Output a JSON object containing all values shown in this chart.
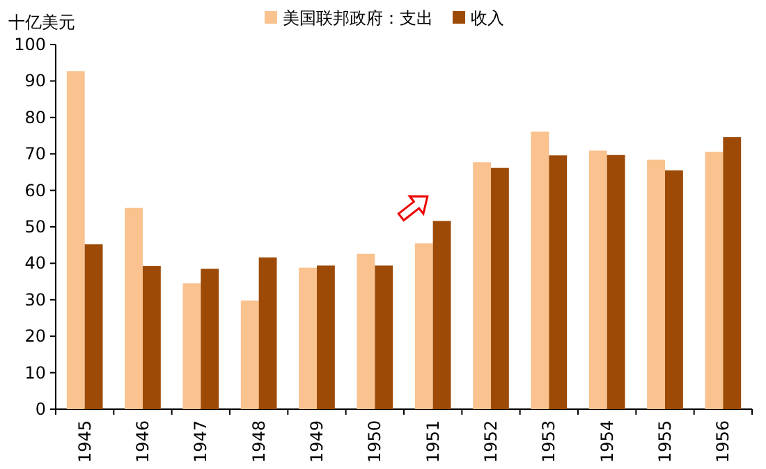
{
  "chart_data": {
    "type": "bar",
    "ylabel": "十亿美元",
    "categories": [
      "1945",
      "1946",
      "1947",
      "1948",
      "1949",
      "1950",
      "1951",
      "1952",
      "1953",
      "1954",
      "1955",
      "1956"
    ],
    "series": [
      {
        "name": "美国联邦政府：支出",
        "color": "#f9c28f",
        "values": [
          92.7,
          55.2,
          34.5,
          29.8,
          38.8,
          42.6,
          45.5,
          67.7,
          76.1,
          70.9,
          68.4,
          70.6
        ]
      },
      {
        "name": "收入",
        "color": "#9c4a06",
        "values": [
          45.2,
          39.3,
          38.5,
          41.6,
          39.4,
          39.4,
          51.6,
          66.2,
          69.6,
          69.7,
          65.5,
          74.6
        ]
      }
    ],
    "ylim": [
      0,
      100
    ],
    "yticks": [
      0,
      10,
      20,
      30,
      40,
      50,
      60,
      70,
      80,
      90,
      100
    ],
    "grid": false,
    "legend": "top"
  }
}
